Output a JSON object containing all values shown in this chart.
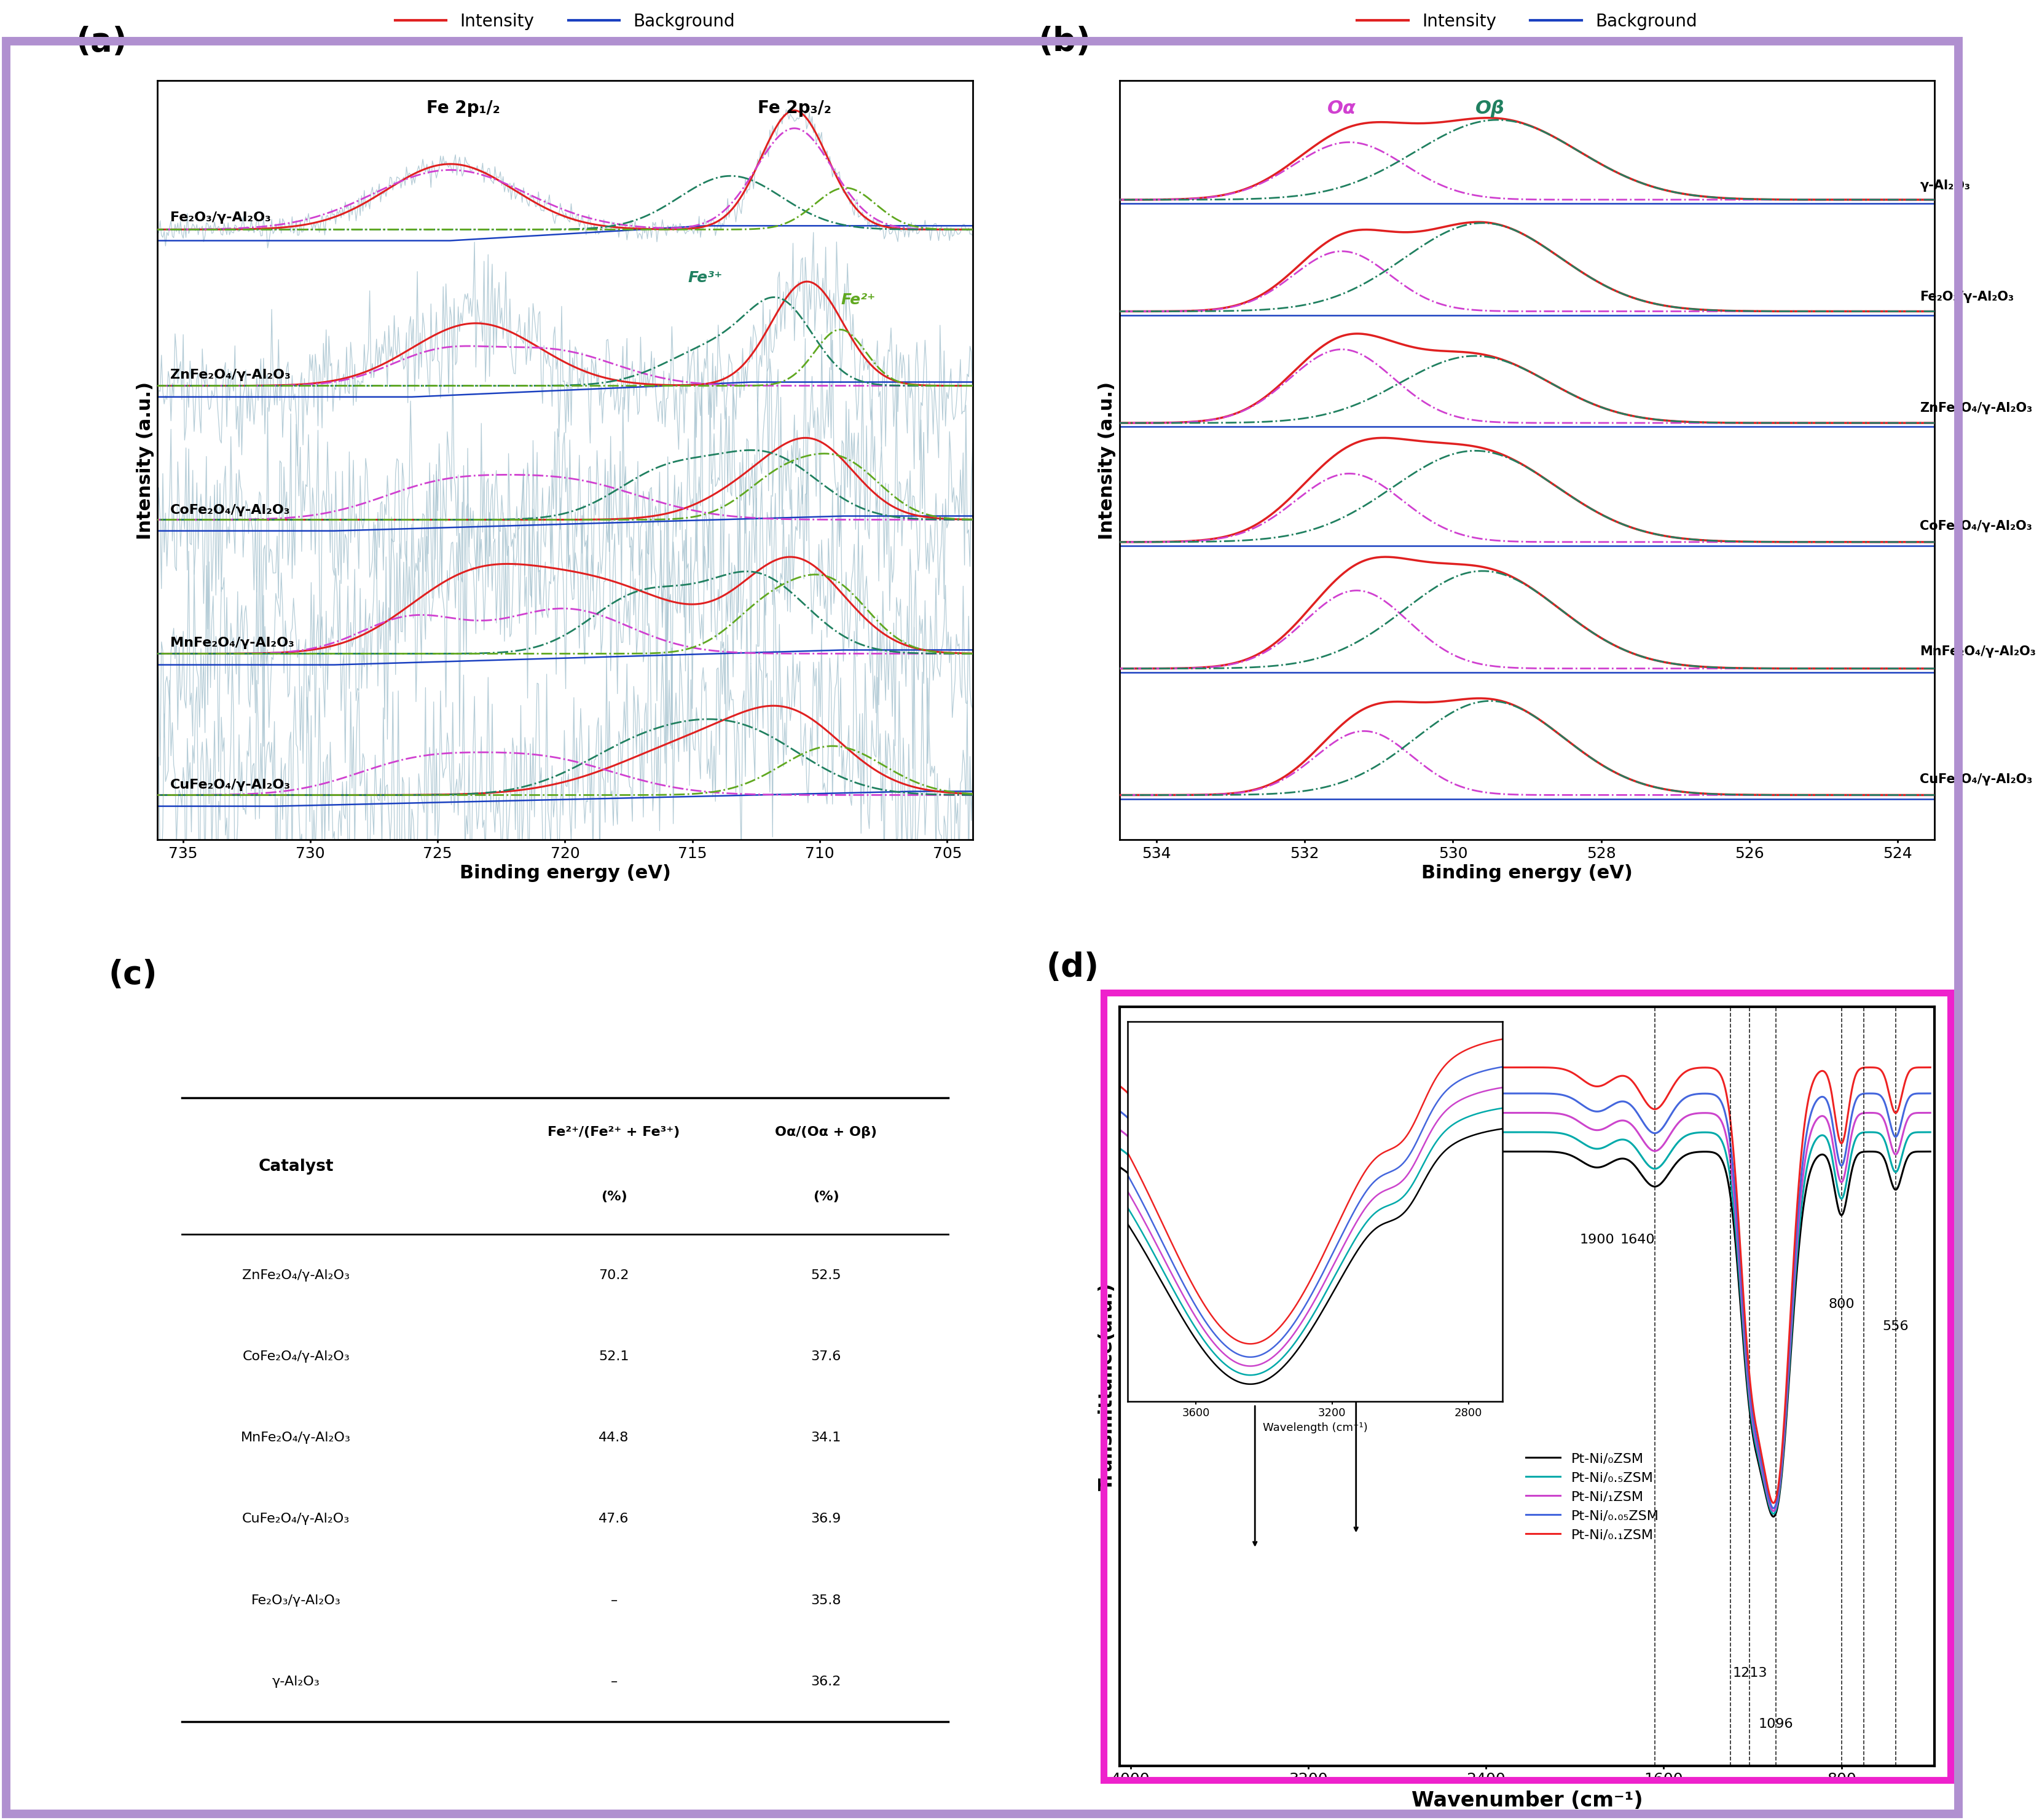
{
  "panel_a": {
    "title": "(a)",
    "xlabel": "Binding energy (eV)",
    "ylabel": "Intensity (a.u.)",
    "labels": [
      "Fe₂O₃/γ-Al₂O₃",
      "ZnFe₂O₄/γ-Al₂O₃",
      "CoFe₂O₄/γ-Al₂O₃",
      "MnFe₂O₄/γ-Al₂O₃",
      "CuFe₂O₄/γ-Al₂O₃"
    ],
    "annot_fe2p12": "Fe 2p₁/₂",
    "annot_fe2p32": "Fe 2p₃/₂",
    "annot_fe3": "Fe³⁺",
    "annot_fe2": "Fe²⁺",
    "col_raw": "#a8c4d0",
    "col_env": "#e02020",
    "col_bg": "#1a40c0",
    "col_pk1": "#d040d0",
    "col_pk2": "#208060",
    "col_pk3": "#60a820"
  },
  "panel_b": {
    "title": "(b)",
    "xlabel": "Binding energy (eV)",
    "ylabel": "Intensity (a.u.)",
    "labels": [
      "γ-Al₂O₃",
      "Fe₂O₃/γ-Al₂O₃",
      "ZnFe₂O₄/γ-Al₂O₃",
      "CoFe₂O₄/γ-Al₂O₃",
      "MnFe₂O₄/γ-Al₂O₃",
      "CuFe₂O₄/γ-Al₂O₃"
    ],
    "annot_oa": "Oα",
    "annot_ob": "Oβ",
    "col_env": "#e02020",
    "col_bg": "#1a40c0",
    "col_oa": "#d040d0",
    "col_ob": "#208060"
  },
  "panel_c": {
    "title": "(c)",
    "rows": [
      [
        "ZnFe₂O₄/γ-Al₂O₃",
        "70.2",
        "52.5"
      ],
      [
        "CoFe₂O₄/γ-Al₂O₃",
        "52.1",
        "37.6"
      ],
      [
        "MnFe₂O₄/γ-Al₂O₃",
        "44.8",
        "34.1"
      ],
      [
        "CuFe₂O₄/γ-Al₂O₃",
        "47.6",
        "36.9"
      ],
      [
        "Fe₂O₃/γ-Al₂O₃",
        "–",
        "35.8"
      ],
      [
        "γ-Al₂O₃",
        "–",
        "36.2"
      ]
    ]
  },
  "panel_d": {
    "title": "(d)",
    "xlabel": "Wavenumber (cm⁻¹)",
    "ylabel": "Transmittance(a.u.)",
    "legend_labels": [
      "Pt-Ni/₀ZSM",
      "Pt-Ni/₀.₅ZSM",
      "Pt-Ni/₁ZSM",
      "Pt-Ni/₀.₀₅ZSM",
      "Pt-Ni/₀.₁ZSM"
    ],
    "legend_colors": [
      "#000000",
      "#00aaaa",
      "#cc44cc",
      "#4466dd",
      "#ee2222"
    ]
  },
  "outer_border": "#b090d0",
  "inner_border_d": "#ee22cc",
  "leg_red": "#e02020",
  "leg_blue": "#1a40c0"
}
